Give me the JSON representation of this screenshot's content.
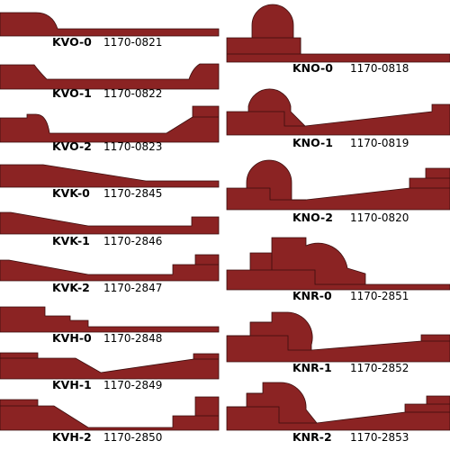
{
  "left_column": [
    {
      "code": "KVO-0",
      "part_number": "1170-0821"
    },
    {
      "code": "KVO-1",
      "part_number": "1170-0822"
    },
    {
      "code": "KVO-2",
      "part_number": "1170-0823"
    },
    {
      "code": "KVK-0",
      "part_number": "1170-2845"
    },
    {
      "code": "KVK-1",
      "part_number": "1170-2846"
    },
    {
      "code": "KVK-2",
      "part_number": "1170-2847"
    },
    {
      "code": "KVH-0",
      "part_number": "1170-2848"
    },
    {
      "code": "KVH-1",
      "part_number": "1170-2849"
    },
    {
      "code": "KVH-2",
      "part_number": "1170-2850"
    }
  ],
  "right_column": [
    {
      "code": "KNO-0",
      "part_number": "1170-0818"
    },
    {
      "code": "KNO-1",
      "part_number": "1170-0819"
    },
    {
      "code": "KNO-2",
      "part_number": "1170-0820"
    },
    {
      "code": "KNR-0",
      "part_number": "1170-2851"
    },
    {
      "code": "KNR-1",
      "part_number": "1170-2852"
    },
    {
      "code": "KNR-2",
      "part_number": "1170-2853"
    }
  ],
  "colors": {
    "profile_fill": "#8b2323",
    "profile_outline": "#3a0d0d",
    "background": "#ffffff"
  }
}
